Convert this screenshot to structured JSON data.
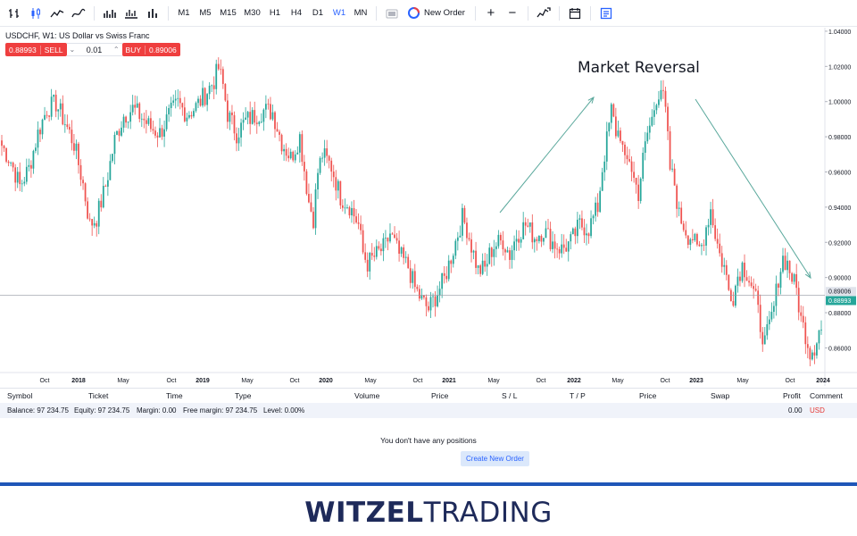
{
  "toolbar": {
    "timeframes": [
      "M1",
      "M5",
      "M15",
      "M30",
      "H1",
      "H4",
      "D1",
      "W1",
      "MN"
    ],
    "active_timeframe": "W1",
    "new_order_label": "New Order",
    "plus_label": "+",
    "minus_label": "−"
  },
  "chart": {
    "symbol_title": "USDCHF, W1: US Dollar vs Swiss Franc",
    "sell_price": "0.88993",
    "sell_label": "SELL",
    "quantity": "0.01",
    "buy_label": "BUY",
    "buy_price": "0.89006",
    "annotation": "Market Reversal"
  },
  "chart_data": {
    "type": "candlestick",
    "timeframe": "W1",
    "y_ticks": [
      "1.04000",
      "1.02000",
      "1.00000",
      "0.98000",
      "0.96000",
      "0.94000",
      "0.92000",
      "0.90000",
      "0.88000",
      "0.86000"
    ],
    "ylim": [
      0.846,
      1.042
    ],
    "x_ticks": [
      "Oct",
      "2018",
      "May",
      "Oct",
      "2019",
      "May",
      "Oct",
      "2020",
      "May",
      "Oct",
      "2021",
      "May",
      "Oct",
      "2022",
      "May",
      "Oct",
      "2023",
      "May",
      "Oct",
      "2024"
    ],
    "price_labels": [
      {
        "value": "0.89006",
        "kind": "ask"
      },
      {
        "value": "0.88993",
        "kind": "bid"
      }
    ],
    "bid_line": 0.8899,
    "path_closes": [
      [
        0,
        0.975
      ],
      [
        4,
        0.966
      ],
      [
        8,
        0.952
      ],
      [
        12,
        0.962
      ],
      [
        16,
        0.982
      ],
      [
        20,
        0.996
      ],
      [
        24,
        0.999
      ],
      [
        28,
        0.988
      ],
      [
        32,
        0.976
      ],
      [
        36,
        0.953
      ],
      [
        39,
        0.93
      ],
      [
        42,
        0.934
      ],
      [
        46,
        0.952
      ],
      [
        50,
        0.978
      ],
      [
        54,
        0.992
      ],
      [
        58,
        0.996
      ],
      [
        62,
        0.991
      ],
      [
        66,
        0.985
      ],
      [
        70,
        0.982
      ],
      [
        74,
        0.992
      ],
      [
        78,
        0.999
      ],
      [
        82,
        0.993
      ],
      [
        86,
        0.997
      ],
      [
        90,
        1.004
      ],
      [
        94,
        1.012
      ],
      [
        96,
        1.019
      ],
      [
        98,
        1.009
      ],
      [
        100,
        0.993
      ],
      [
        104,
        0.982
      ],
      [
        108,
        0.989
      ],
      [
        112,
        0.992
      ],
      [
        116,
        0.995
      ],
      [
        120,
        0.994
      ],
      [
        124,
        0.977
      ],
      [
        128,
        0.968
      ],
      [
        132,
        0.98
      ],
      [
        136,
        0.943
      ],
      [
        138,
        0.934
      ],
      [
        140,
        0.96
      ],
      [
        142,
        0.97
      ],
      [
        146,
        0.963
      ],
      [
        150,
        0.946
      ],
      [
        154,
        0.941
      ],
      [
        158,
        0.93
      ],
      [
        160,
        0.914
      ],
      [
        162,
        0.908
      ],
      [
        166,
        0.913
      ],
      [
        170,
        0.918
      ],
      [
        172,
        0.925
      ],
      [
        176,
        0.913
      ],
      [
        180,
        0.906
      ],
      [
        183,
        0.894
      ],
      [
        186,
        0.887
      ],
      [
        189,
        0.882
      ],
      [
        192,
        0.889
      ],
      [
        196,
        0.899
      ],
      [
        200,
        0.916
      ],
      [
        204,
        0.934
      ],
      [
        206,
        0.928
      ],
      [
        208,
        0.918
      ],
      [
        211,
        0.904
      ],
      [
        214,
        0.905
      ],
      [
        216,
        0.913
      ],
      [
        218,
        0.918
      ],
      [
        222,
        0.921
      ],
      [
        225,
        0.913
      ],
      [
        228,
        0.924
      ],
      [
        232,
        0.93
      ],
      [
        236,
        0.923
      ],
      [
        240,
        0.927
      ],
      [
        244,
        0.92
      ],
      [
        248,
        0.916
      ],
      [
        252,
        0.92
      ],
      [
        256,
        0.93
      ],
      [
        260,
        0.928
      ],
      [
        264,
        0.94
      ],
      [
        266,
        0.962
      ],
      [
        268,
        0.978
      ],
      [
        270,
        0.995
      ],
      [
        272,
        0.983
      ],
      [
        274,
        0.982
      ],
      [
        276,
        0.964
      ],
      [
        278,
        0.968
      ],
      [
        280,
        0.956
      ],
      [
        282,
        0.948
      ],
      [
        284,
        0.967
      ],
      [
        286,
        0.982
      ],
      [
        288,
        0.99
      ],
      [
        290,
        1.003
      ],
      [
        292,
        1.008
      ],
      [
        294,
        0.994
      ],
      [
        296,
        0.962
      ],
      [
        298,
        0.953
      ],
      [
        300,
        0.935
      ],
      [
        302,
        0.93
      ],
      [
        304,
        0.924
      ],
      [
        306,
        0.923
      ],
      [
        308,
        0.915
      ],
      [
        310,
        0.918
      ],
      [
        312,
        0.929
      ],
      [
        314,
        0.939
      ],
      [
        316,
        0.925
      ],
      [
        318,
        0.913
      ],
      [
        320,
        0.906
      ],
      [
        322,
        0.893
      ],
      [
        324,
        0.89
      ],
      [
        326,
        0.901
      ],
      [
        328,
        0.907
      ],
      [
        330,
        0.903
      ],
      [
        332,
        0.896
      ],
      [
        334,
        0.887
      ],
      [
        336,
        0.873
      ],
      [
        338,
        0.863
      ],
      [
        340,
        0.872
      ],
      [
        342,
        0.883
      ],
      [
        344,
        0.9
      ],
      [
        346,
        0.911
      ],
      [
        348,
        0.908
      ],
      [
        350,
        0.9
      ],
      [
        352,
        0.893
      ],
      [
        354,
        0.876
      ],
      [
        356,
        0.868
      ],
      [
        358,
        0.858
      ],
      [
        360,
        0.861
      ],
      [
        362,
        0.87
      ]
    ],
    "annotation_arrows": [
      {
        "from": [
          "2021-03",
          0.94
        ],
        "to": [
          "2022-03",
          1.006
        ]
      },
      {
        "from": [
          "2022-12",
          1.005
        ],
        "to": [
          "2023-11",
          0.901
        ]
      }
    ]
  },
  "positions": {
    "columns": [
      "Symbol",
      "Ticket",
      "Time",
      "Type",
      "Volume",
      "Price",
      "S / L",
      "T / P",
      "Price",
      "Swap",
      "Profit",
      "Comment"
    ],
    "balance_label": "Balance: 97 234.75",
    "equity_label": "Equity: 97 234.75",
    "margin_label": "Margin: 0.00",
    "free_margin_label": "Free margin: 97 234.75",
    "level_label": "Level: 0.00%",
    "profit_value": "0.00",
    "currency": "USD",
    "empty_message": "You don't have any positions",
    "create_button_label": "Create New Order"
  },
  "brand": {
    "part1": "WITZEL",
    "part2": "TRADING"
  },
  "colors": {
    "up": "#26a69a",
    "down": "#ef5350",
    "accent": "#2962ff",
    "brand_line": "#1f56b8"
  }
}
